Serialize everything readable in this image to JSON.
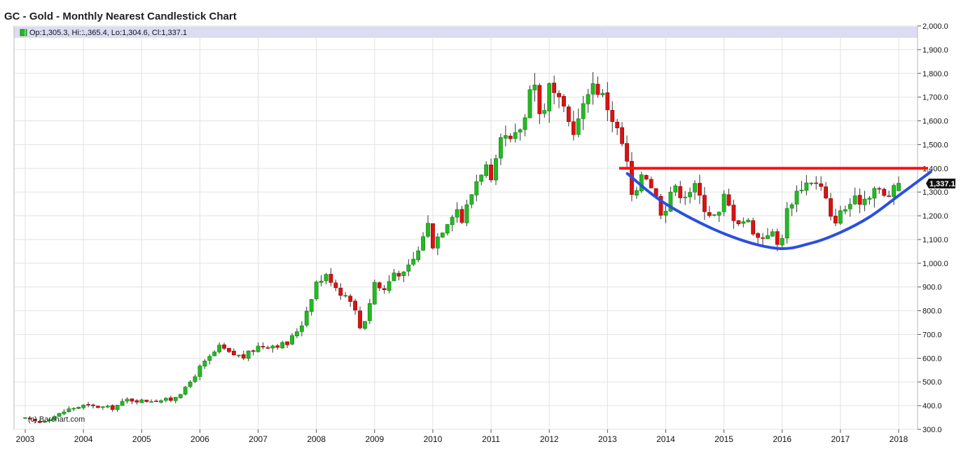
{
  "chart_data": {
    "type": "candlestick",
    "title": "GC - Gold - Monthly Nearest Candlestick Chart",
    "ohlc_readout": "Op:1,305.3, Hi:1,365.4, Lo:1,304.6, Cl:1,337.1",
    "last_price_label": "1,337.1",
    "watermark": "(c) Barchart.com",
    "ylim": [
      300,
      2000
    ],
    "y_tick_values": [
      300,
      400,
      500,
      600,
      700,
      800,
      900,
      1000,
      1100,
      1200,
      1300,
      1400,
      1500,
      1600,
      1700,
      1800,
      1900,
      2000
    ],
    "y_tick_labels": [
      "300.0",
      "400.0",
      "500.0",
      "600.0",
      "700.0",
      "800.0",
      "900.0",
      "1,000.0",
      "1,100.0",
      "1,200.0",
      "1,300.0",
      "1,400.0",
      "1,500.0",
      "1,600.0",
      "1,700.0",
      "1,800.0",
      "1,900.0",
      "2,000.0"
    ],
    "x_tick_labels": [
      "2003",
      "2004",
      "2005",
      "2006",
      "2007",
      "2008",
      "2009",
      "2010",
      "2011",
      "2012",
      "2013",
      "2014",
      "2015",
      "2016",
      "2017",
      "2018"
    ],
    "grid": true,
    "colors": {
      "up": "#22bb22",
      "down": "#dd1111",
      "resistance_line": "#ff1111",
      "arc": "#2a4fe0",
      "legend_band": "#dcdcf3",
      "grid": "#e2e2e2"
    },
    "resistance_level": 1400,
    "arc_points": [
      {
        "x": 2013.34,
        "y": 1378
      },
      {
        "x": 2014.0,
        "y": 1250
      },
      {
        "x": 2015.0,
        "y": 1125
      },
      {
        "x": 2015.9,
        "y": 1063
      },
      {
        "x": 2016.5,
        "y": 1085
      },
      {
        "x": 2017.0,
        "y": 1130
      },
      {
        "x": 2017.5,
        "y": 1195
      },
      {
        "x": 2018.0,
        "y": 1285
      },
      {
        "x": 2018.55,
        "y": 1385
      }
    ],
    "monthly_close_path": [
      [
        2003.0,
        345
      ],
      [
        2003.25,
        330
      ],
      [
        2003.5,
        355
      ],
      [
        2003.75,
        385
      ],
      [
        2004.0,
        400
      ],
      [
        2004.25,
        395
      ],
      [
        2004.5,
        390
      ],
      [
        2004.75,
        425
      ],
      [
        2005.0,
        420
      ],
      [
        2005.5,
        425
      ],
      [
        2005.75,
        470
      ],
      [
        2006.0,
        560
      ],
      [
        2006.35,
        650
      ],
      [
        2006.5,
        620
      ],
      [
        2006.75,
        605
      ],
      [
        2007.0,
        650
      ],
      [
        2007.5,
        660
      ],
      [
        2007.75,
        745
      ],
      [
        2008.0,
        920
      ],
      [
        2008.2,
        950
      ],
      [
        2008.4,
        880
      ],
      [
        2008.6,
        850
      ],
      [
        2008.75,
        730
      ],
      [
        2008.85,
        770
      ],
      [
        2009.0,
        920
      ],
      [
        2009.15,
        880
      ],
      [
        2009.35,
        970
      ],
      [
        2009.5,
        950
      ],
      [
        2009.75,
        1050
      ],
      [
        2009.9,
        1180
      ],
      [
        2010.0,
        1080
      ],
      [
        2010.25,
        1180
      ],
      [
        2010.4,
        1240
      ],
      [
        2010.5,
        1180
      ],
      [
        2010.75,
        1350
      ],
      [
        2010.9,
        1420
      ],
      [
        2011.0,
        1330
      ],
      [
        2011.2,
        1540
      ],
      [
        2011.35,
        1500
      ],
      [
        2011.6,
        1620
      ],
      [
        2011.7,
        1830
      ],
      [
        2011.85,
        1600
      ],
      [
        2012.0,
        1740
      ],
      [
        2012.2,
        1660
      ],
      [
        2012.4,
        1560
      ],
      [
        2012.55,
        1620
      ],
      [
        2012.7,
        1770
      ],
      [
        2012.9,
        1710
      ],
      [
        2013.0,
        1660
      ],
      [
        2013.15,
        1570
      ],
      [
        2013.3,
        1470
      ],
      [
        2013.45,
        1230
      ],
      [
        2013.6,
        1400
      ],
      [
        2013.75,
        1330
      ],
      [
        2013.95,
        1200
      ],
      [
        2014.1,
        1320
      ],
      [
        2014.3,
        1290
      ],
      [
        2014.5,
        1320
      ],
      [
        2014.7,
        1220
      ],
      [
        2014.9,
        1190
      ],
      [
        2015.0,
        1280
      ],
      [
        2015.2,
        1180
      ],
      [
        2015.4,
        1180
      ],
      [
        2015.6,
        1100
      ],
      [
        2015.8,
        1140
      ],
      [
        2015.95,
        1060
      ],
      [
        2016.1,
        1240
      ],
      [
        2016.3,
        1320
      ],
      [
        2016.5,
        1350
      ],
      [
        2016.7,
        1310
      ],
      [
        2016.85,
        1170
      ],
      [
        2017.0,
        1210
      ],
      [
        2017.2,
        1260
      ],
      [
        2017.4,
        1270
      ],
      [
        2017.6,
        1320
      ],
      [
        2017.75,
        1280
      ],
      [
        2017.9,
        1300
      ],
      [
        2018.0,
        1337
      ]
    ]
  }
}
